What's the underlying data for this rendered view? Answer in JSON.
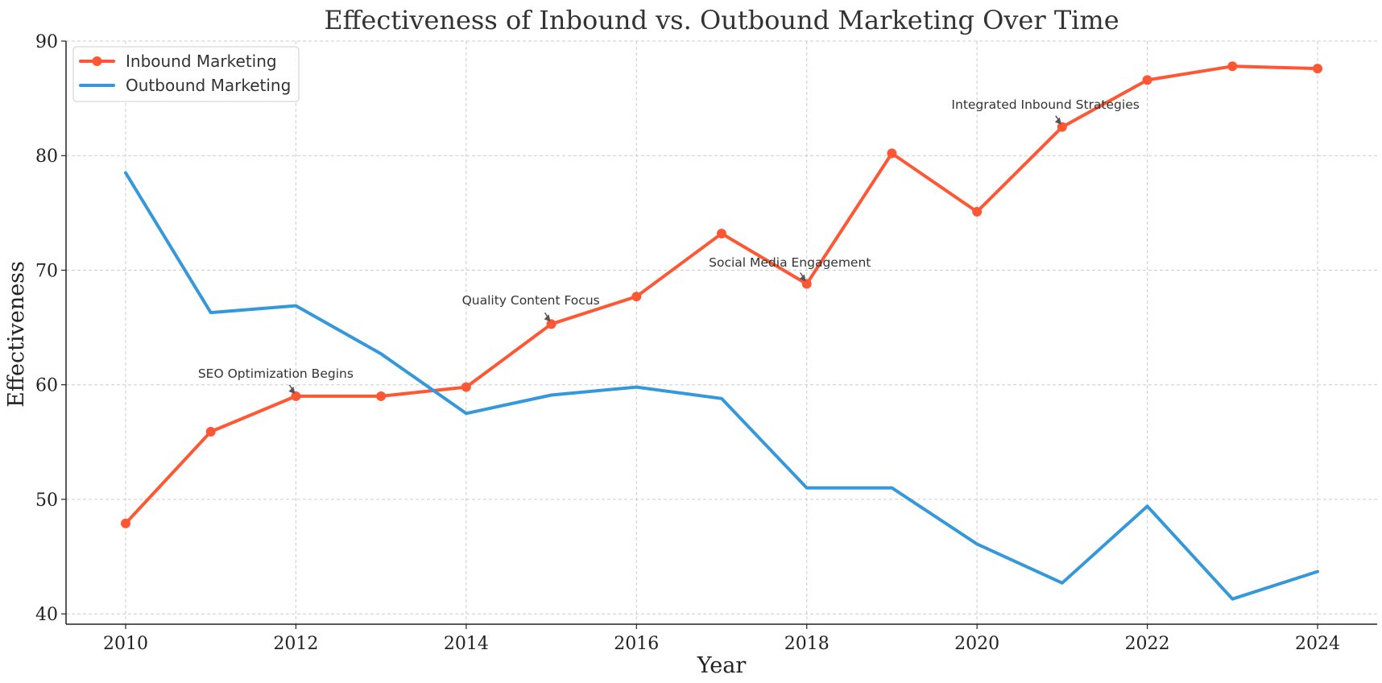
{
  "chart_data": {
    "type": "line",
    "title": "Effectiveness of Inbound vs. Outbound Marketing Over Time",
    "xlabel": "Year",
    "ylabel": "Effectiveness",
    "x": [
      2010,
      2011,
      2012,
      2013,
      2014,
      2015,
      2016,
      2017,
      2018,
      2019,
      2020,
      2021,
      2022,
      2023,
      2024
    ],
    "xlim": [
      2009.3,
      2024.7
    ],
    "ylim": [
      39.1,
      90
    ],
    "xticks": [
      2010,
      2012,
      2014,
      2016,
      2018,
      2020,
      2022,
      2024
    ],
    "yticks": [
      40,
      50,
      60,
      70,
      80,
      90
    ],
    "grid": true,
    "legend_position": "top-left",
    "series": [
      {
        "name": "Inbound Marketing",
        "color": "#FF5733",
        "marker": "circle",
        "values": [
          47.9,
          55.9,
          59.0,
          59.0,
          59.8,
          65.3,
          67.7,
          73.2,
          68.8,
          80.2,
          75.1,
          82.5,
          86.6,
          87.8,
          87.6
        ]
      },
      {
        "name": "Outbound Marketing",
        "color": "#3498DB",
        "marker": "none",
        "values": [
          78.5,
          66.3,
          66.9,
          62.7,
          57.5,
          59.1,
          59.8,
          58.8,
          51.0,
          51.0,
          46.1,
          42.7,
          49.4,
          41.3,
          43.7
        ]
      }
    ],
    "annotations": [
      {
        "text": "SEO Optimization Begins",
        "x": 2012,
        "y": 59.0,
        "text_x": 2010.85,
        "text_y": 60.6
      },
      {
        "text": "Quality Content Focus",
        "x": 2015,
        "y": 65.3,
        "text_x": 2013.95,
        "text_y": 67.0
      },
      {
        "text": "Social Media Engagement",
        "x": 2018,
        "y": 68.8,
        "text_x": 2016.85,
        "text_y": 70.3
      },
      {
        "text": "Integrated Inbound Strategies",
        "x": 2021,
        "y": 82.5,
        "text_x": 2019.7,
        "text_y": 84.1
      }
    ]
  }
}
